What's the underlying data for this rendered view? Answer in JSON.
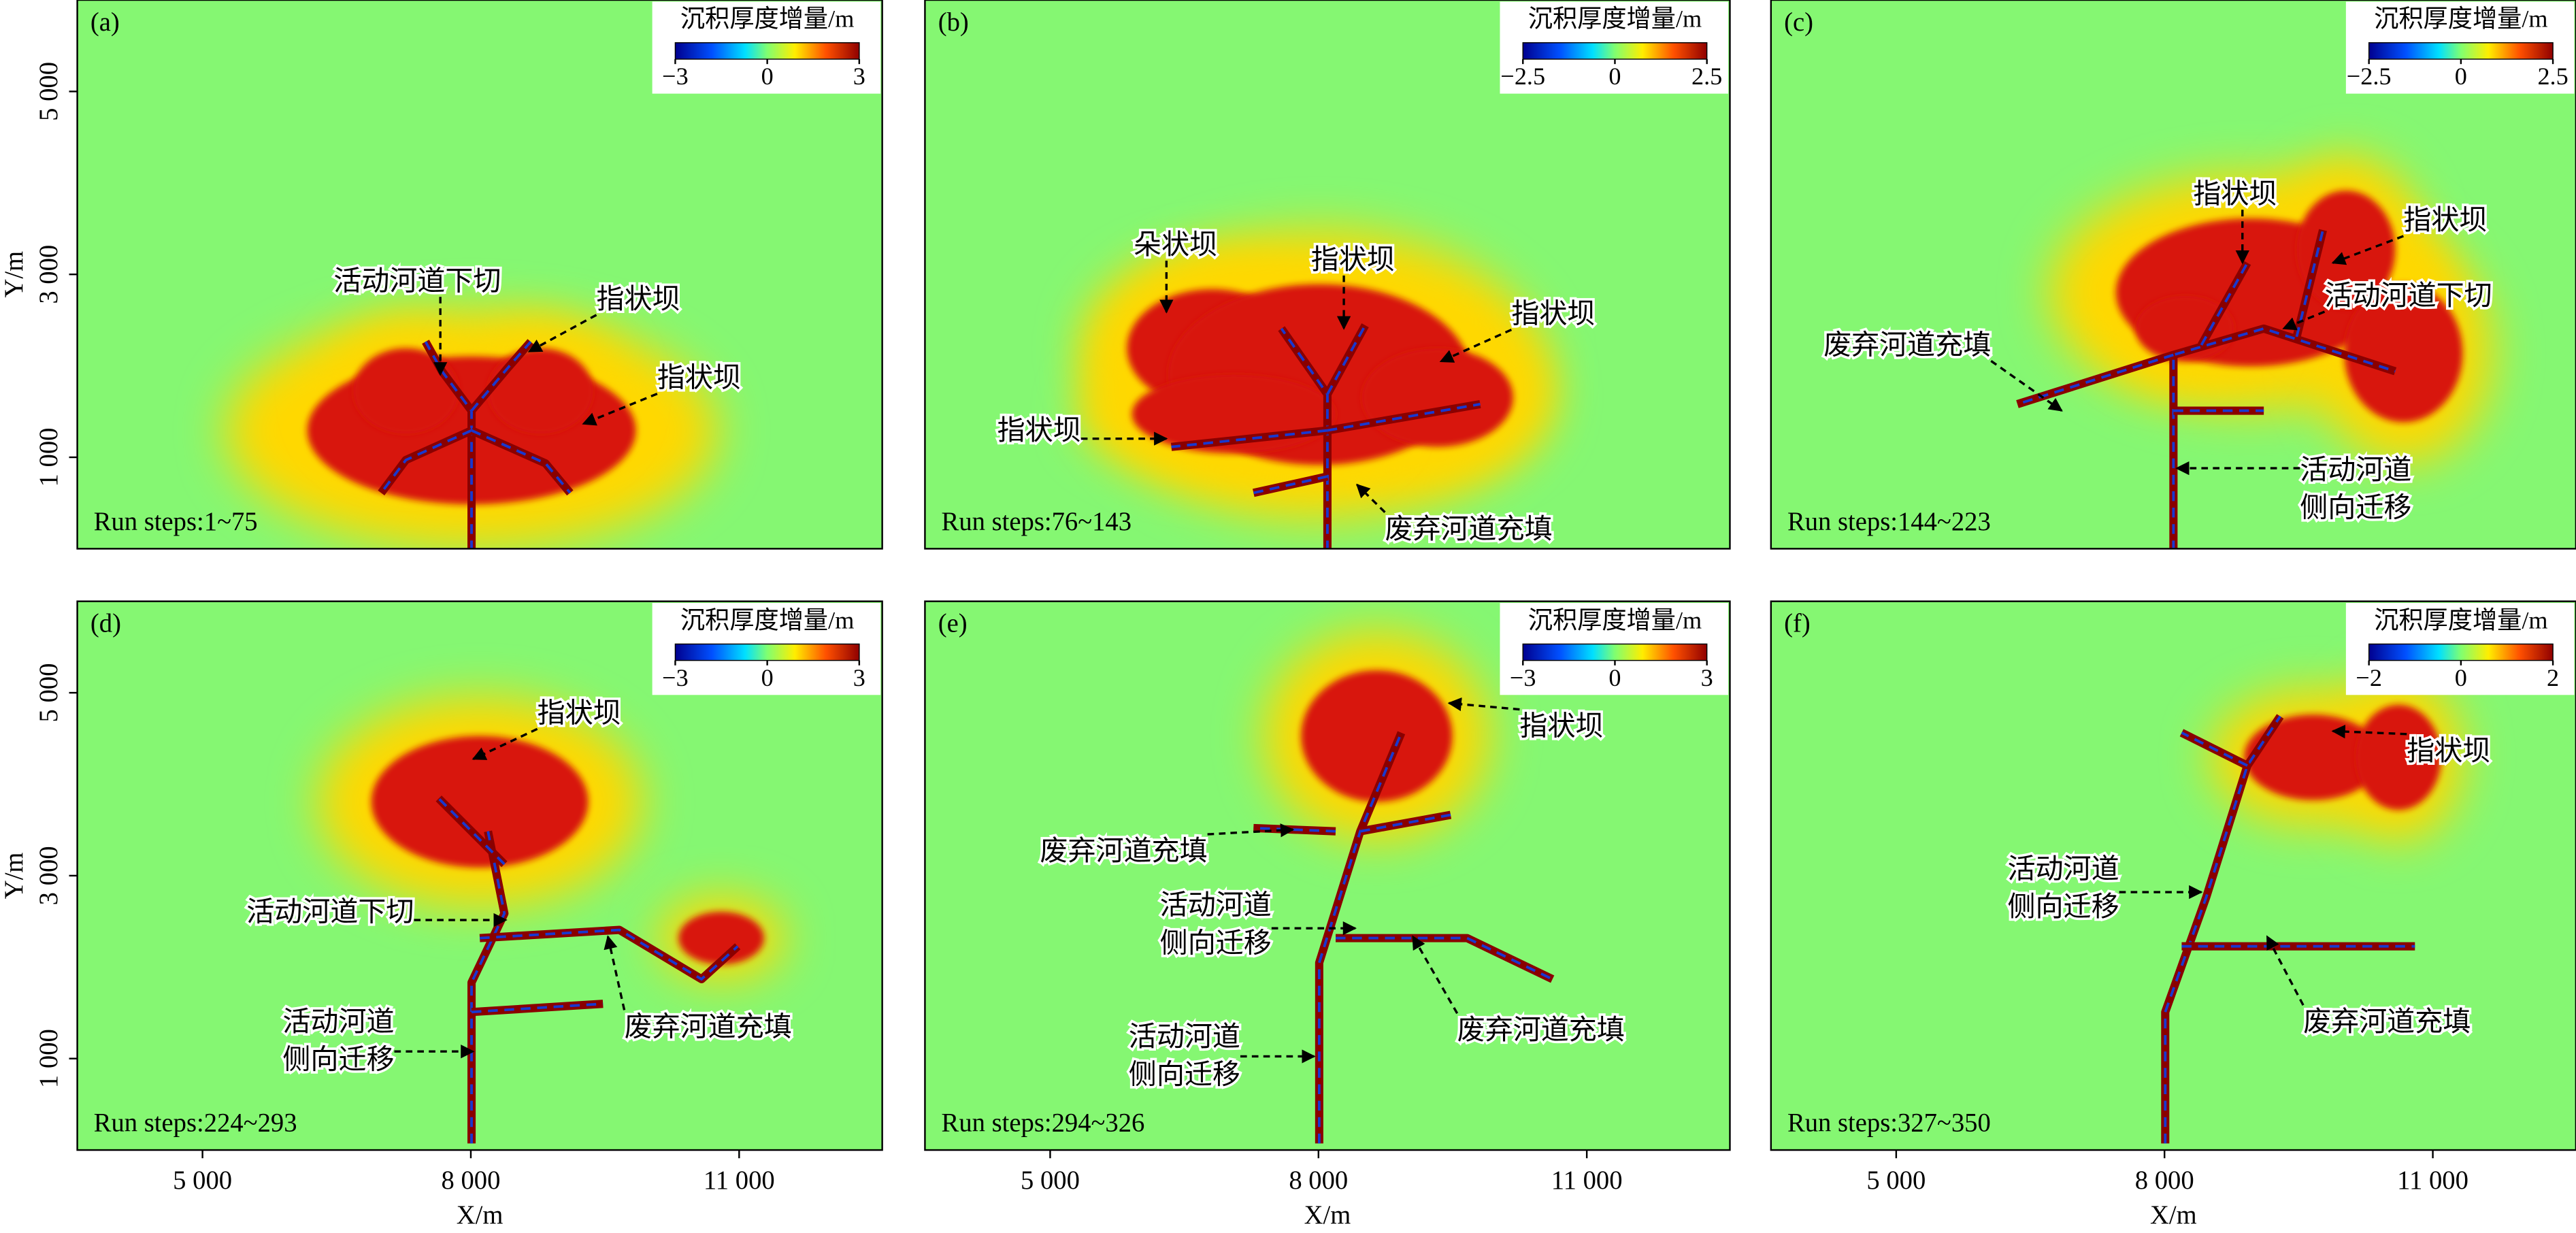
{
  "chart_data": [
    {
      "type": "heatmap",
      "panel_label": "(a)",
      "colorbar_title": "沉积厚度增量/m",
      "clim": [
        -3,
        3
      ],
      "cticks": [
        {
          "value": -3,
          "label": "−3"
        },
        0,
        3
      ],
      "run_steps": "Run steps:1~75",
      "xlim": [
        3600,
        12600
      ],
      "ylim": [
        0,
        6000
      ],
      "ylabel": "Y/m",
      "yticks": [
        {
          "value": 1000,
          "label": "1 000"
        },
        {
          "value": 3000,
          "label": "3 000"
        },
        {
          "value": 5000,
          "label": "5 000"
        }
      ],
      "annotations": [
        {
          "lines": [
            "活动河道下切"
          ]
        },
        {
          "lines": [
            "指状坝"
          ]
        },
        {
          "lines": [
            "指状坝"
          ]
        }
      ]
    },
    {
      "type": "heatmap",
      "panel_label": "(b)",
      "colorbar_title": "沉积厚度增量/m",
      "clim": [
        -2.5,
        2.5
      ],
      "cticks": [
        {
          "value": -2.5,
          "label": "−2.5"
        },
        0,
        2.5
      ],
      "run_steps": "Run steps:76~143",
      "xlim": [
        3600,
        12600
      ],
      "ylim": [
        0,
        6000
      ],
      "annotations": [
        {
          "lines": [
            "朵状坝"
          ]
        },
        {
          "lines": [
            "指状坝"
          ]
        },
        {
          "lines": [
            "指状坝"
          ]
        },
        {
          "lines": [
            "指状坝"
          ]
        },
        {
          "lines": [
            "废弃河道充填"
          ]
        }
      ]
    },
    {
      "type": "heatmap",
      "panel_label": "(c)",
      "colorbar_title": "沉积厚度增量/m",
      "clim": [
        -2.5,
        2.5
      ],
      "cticks": [
        {
          "value": -2.5,
          "label": "−2.5"
        },
        0,
        2.5
      ],
      "run_steps": "Run steps:144~223",
      "xlim": [
        3600,
        12600
      ],
      "ylim": [
        0,
        6000
      ],
      "annotations": [
        {
          "lines": [
            "指状坝"
          ]
        },
        {
          "lines": [
            "指状坝"
          ]
        },
        {
          "lines": [
            "活动河道下切"
          ]
        },
        {
          "lines": [
            "废弃河道充填"
          ]
        },
        {
          "lines": [
            "活动河道",
            "侧向迁移"
          ]
        }
      ]
    },
    {
      "type": "heatmap",
      "panel_label": "(d)",
      "colorbar_title": "沉积厚度增量/m",
      "clim": [
        -3,
        3
      ],
      "cticks": [
        {
          "value": -3,
          "label": "−3"
        },
        0,
        3
      ],
      "run_steps": "Run steps:224~293",
      "xlim": [
        3600,
        12600
      ],
      "ylim": [
        0,
        6000
      ],
      "xlabel": "X/m",
      "ylabel": "Y/m",
      "xticks": [
        {
          "value": 5000,
          "label": "5 000"
        },
        {
          "value": 8000,
          "label": "8 000"
        },
        {
          "value": 11000,
          "label": "11 000"
        }
      ],
      "yticks": [
        {
          "value": 1000,
          "label": "1 000"
        },
        {
          "value": 3000,
          "label": "3 000"
        },
        {
          "value": 5000,
          "label": "5 000"
        }
      ],
      "annotations": [
        {
          "lines": [
            "指状坝"
          ]
        },
        {
          "lines": [
            "活动河道下切"
          ]
        },
        {
          "lines": [
            "废弃河道充填"
          ]
        },
        {
          "lines": [
            "活动河道",
            "侧向迁移"
          ]
        }
      ]
    },
    {
      "type": "heatmap",
      "panel_label": "(e)",
      "colorbar_title": "沉积厚度增量/m",
      "clim": [
        -3,
        3
      ],
      "cticks": [
        {
          "value": -3,
          "label": "−3"
        },
        0,
        3
      ],
      "run_steps": "Run steps:294~326",
      "xlim": [
        3600,
        12600
      ],
      "ylim": [
        0,
        6000
      ],
      "xlabel": "X/m",
      "xticks": [
        {
          "value": 5000,
          "label": "5 000"
        },
        {
          "value": 8000,
          "label": "8 000"
        },
        {
          "value": 11000,
          "label": "11 000"
        }
      ],
      "annotations": [
        {
          "lines": [
            "指状坝"
          ]
        },
        {
          "lines": [
            "废弃河道充填"
          ]
        },
        {
          "lines": [
            "活动河道",
            "侧向迁移"
          ]
        },
        {
          "lines": [
            "废弃河道充填"
          ]
        },
        {
          "lines": [
            "活动河道",
            "侧向迁移"
          ]
        }
      ]
    },
    {
      "type": "heatmap",
      "panel_label": "(f)",
      "colorbar_title": "沉积厚度增量/m",
      "clim": [
        -2,
        2
      ],
      "cticks": [
        {
          "value": -2,
          "label": "−2"
        },
        0,
        2
      ],
      "run_steps": "Run steps:327~350",
      "xlim": [
        3600,
        12600
      ],
      "ylim": [
        0,
        6000
      ],
      "xlabel": "X/m",
      "xticks": [
        {
          "value": 5000,
          "label": "5 000"
        },
        {
          "value": 8000,
          "label": "8 000"
        },
        {
          "value": 11000,
          "label": "11 000"
        }
      ],
      "annotations": [
        {
          "lines": [
            "指状坝"
          ]
        },
        {
          "lines": [
            "活动河道",
            "侧向迁移"
          ]
        },
        {
          "lines": [
            "废弃河道充填"
          ]
        }
      ]
    }
  ]
}
